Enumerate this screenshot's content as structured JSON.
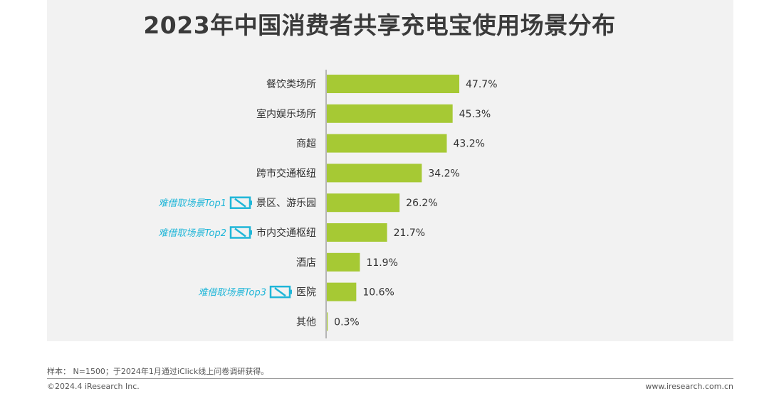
{
  "chart_data": {
    "type": "bar",
    "orientation": "horizontal",
    "title": "2023年中国消费者共享充电宝使用场景分布",
    "categories": [
      "餐饮类场所",
      "室内娱乐场所",
      "商超",
      "跨市交通枢纽",
      "景区、游乐园",
      "市内交通枢纽",
      "酒店",
      "医院",
      "其他"
    ],
    "values": [
      47.7,
      45.3,
      43.2,
      34.2,
      26.2,
      21.7,
      11.9,
      10.6,
      0.3
    ],
    "value_labels": [
      "47.7%",
      "45.3%",
      "43.2%",
      "34.2%",
      "26.2%",
      "21.7%",
      "11.9%",
      "10.6%",
      "0.3%"
    ],
    "bar_color": "#a6c934",
    "annotations": [
      {
        "category": "景区、游乐园",
        "text": "难借取场景Top1"
      },
      {
        "category": "市内交通枢纽",
        "text": "难借取场景Top2"
      },
      {
        "category": "医院",
        "text": "难借取场景Top3"
      }
    ],
    "annotation_color": "#1fb6d8",
    "xlim": [
      0,
      50
    ]
  },
  "footer": {
    "note": "样本： N=1500；于2024年1月通过iClick线上问卷调研获得。",
    "copyright": "©2024.4 iResearch Inc.",
    "website": "www.iresearch.com.cn"
  }
}
